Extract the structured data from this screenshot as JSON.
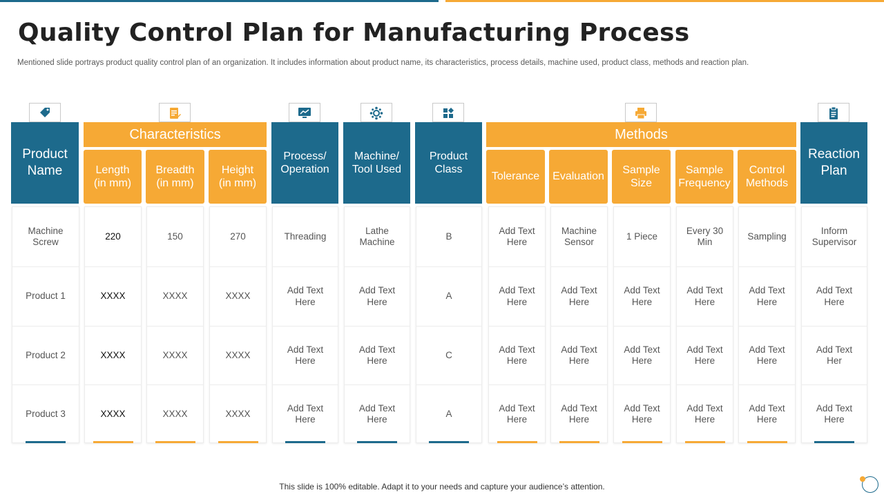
{
  "slide": {
    "title": "Quality Control Plan for Manufacturing Process",
    "subtitle": "Mentioned slide portrays product quality control plan of an organization. It includes information about product name, its characteristics, process details, machine used, product class, methods and reaction plan.",
    "footer": "This slide is 100% editable. Adapt it to your needs and capture your audience’s attention."
  },
  "colors": {
    "blue": "#1d6a8c",
    "orange": "#f6a935"
  },
  "icons": {
    "product_name": "tag-icon",
    "characteristics": "document-edit-icon",
    "process": "monitor-chart-icon",
    "machine": "gear-network-icon",
    "product_class": "blocks-icon",
    "methods": "printer-icon",
    "reaction_plan": "clipboard-icon"
  },
  "headers": {
    "product_name": "Product\nName",
    "characteristics": "Characteristics",
    "length": "Length\n(in mm)",
    "breadth": "Breadth\n(in mm)",
    "height": "Height\n(in mm)",
    "process": "Process/\nOperation",
    "machine": "Machine/\nTool Used",
    "product_class": "Product\nClass",
    "methods": "Methods",
    "tolerance": "Tolerance",
    "evaluation": "Evaluation",
    "sample_size": "Sample\nSize",
    "sample_frequency": "Sample\nFrequency",
    "control_methods": "Control\nMethods",
    "reaction_plan": "Reaction\nPlan"
  },
  "rows": [
    {
      "product_name": "Machine\nScrew",
      "length": "220",
      "breadth": "150",
      "height": "270",
      "process": "Threading",
      "machine": "Lathe\nMachine",
      "product_class": "B",
      "tolerance": "Add Text\nHere",
      "evaluation": "Machine\nSensor",
      "sample_size": "1 Piece",
      "sample_frequency": "Every  30\nMin",
      "control_methods": "Sampling",
      "reaction_plan": "Inform\nSupervisor"
    },
    {
      "product_name": "Product 1",
      "length": "XXXX",
      "breadth": "XXXX",
      "height": "XXXX",
      "process": "Add Text\nHere",
      "machine": "Add Text\nHere",
      "product_class": "A",
      "tolerance": "Add Text\nHere",
      "evaluation": "Add Text\nHere",
      "sample_size": "Add Text\nHere",
      "sample_frequency": "Add Text\nHere",
      "control_methods": "Add Text\nHere",
      "reaction_plan": "Add Text\nHere"
    },
    {
      "product_name": "Product 2",
      "length": "XXXX",
      "breadth": "XXXX",
      "height": "XXXX",
      "process": "Add Text\nHere",
      "machine": "Add Text\nHere",
      "product_class": "C",
      "tolerance": "Add Text\nHere",
      "evaluation": "Add Text\nHere",
      "sample_size": "Add Text\nHere",
      "sample_frequency": "Add Text\nHere",
      "control_methods": "Add Text\nHere",
      "reaction_plan": "Add Text\nHer"
    },
    {
      "product_name": "Product 3",
      "length": "XXXX",
      "breadth": "XXXX",
      "height": "XXXX",
      "process": "Add Text\nHere",
      "machine": "Add Text\nHere",
      "product_class": "A",
      "tolerance": "Add Text\nHere",
      "evaluation": "Add Text\nHere",
      "sample_size": "Add Text\nHere",
      "sample_frequency": "Add Text\nHere",
      "control_methods": "Add Text\nHere",
      "reaction_plan": "Add Text\nHere"
    }
  ]
}
